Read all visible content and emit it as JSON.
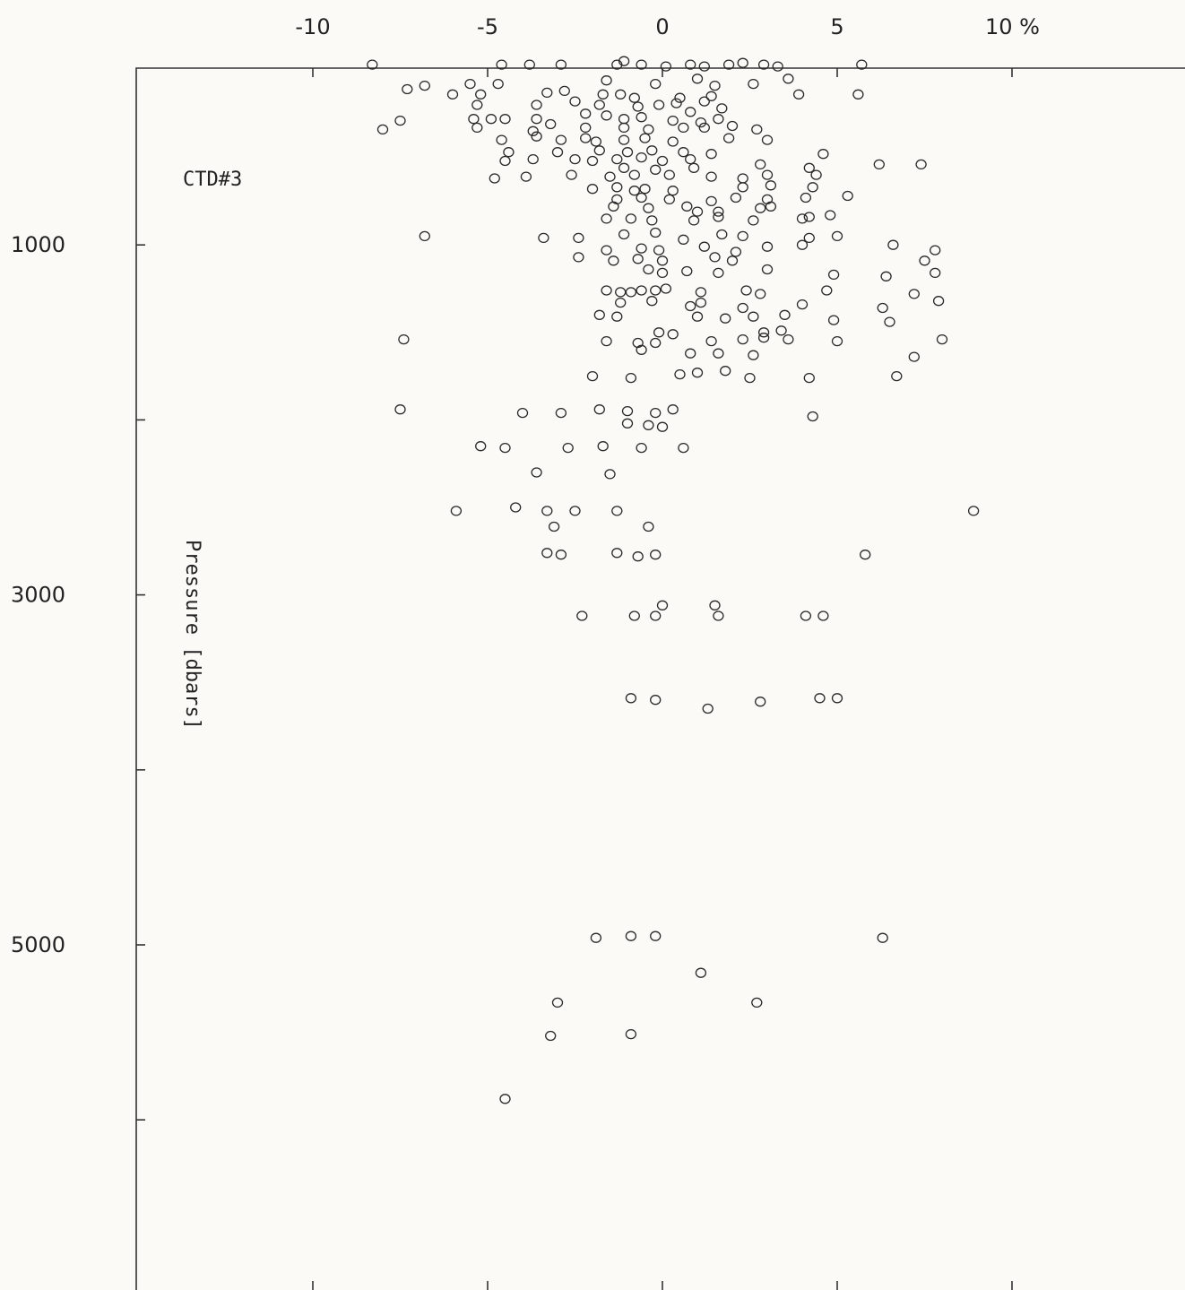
{
  "chart_data": {
    "type": "scatter",
    "title": "",
    "annotation": "CTD#3",
    "xlabel": "",
    "x_unit": "%",
    "ylabel": "Pressure [dbars]",
    "xlim": [
      -15,
      15
    ],
    "ylim": [
      6000,
      -200
    ],
    "y_inverted": true,
    "x_ticks": [
      -10,
      -5,
      0,
      5,
      10
    ],
    "x_tick_labels": [
      "-10",
      "-5",
      "0",
      "5",
      "10 %"
    ],
    "y_ticks": [
      1000,
      2000,
      3000,
      4000,
      5000,
      6000
    ],
    "y_tick_labels": [
      "1000",
      "",
      "3000",
      "",
      "5000",
      ""
    ],
    "grid": false,
    "legend": "none",
    "series": [
      {
        "marker": "open-circle",
        "points": [
          [
            -8.3,
            -30
          ],
          [
            -4.6,
            -30
          ],
          [
            -3.8,
            -30
          ],
          [
            -2.9,
            -30
          ],
          [
            -1.3,
            -30
          ],
          [
            -1.1,
            -50
          ],
          [
            -0.6,
            -30
          ],
          [
            0.1,
            -20
          ],
          [
            0.8,
            -30
          ],
          [
            1.2,
            -20
          ],
          [
            1.9,
            -30
          ],
          [
            2.3,
            -40
          ],
          [
            2.9,
            -30
          ],
          [
            3.3,
            -20
          ],
          [
            5.7,
            -30
          ],
          [
            -5.5,
            80
          ],
          [
            -4.7,
            80
          ],
          [
            -1.6,
            60
          ],
          [
            -0.2,
            80
          ],
          [
            1.0,
            50
          ],
          [
            1.5,
            90
          ],
          [
            2.6,
            80
          ],
          [
            3.6,
            50
          ],
          [
            -6.0,
            140
          ],
          [
            -5.2,
            140
          ],
          [
            -3.3,
            130
          ],
          [
            -2.8,
            120
          ],
          [
            -1.7,
            140
          ],
          [
            -1.2,
            140
          ],
          [
            0.5,
            160
          ],
          [
            1.4,
            150
          ],
          [
            3.9,
            140
          ],
          [
            5.6,
            140
          ],
          [
            -5.3,
            200
          ],
          [
            -3.6,
            200
          ],
          [
            -2.5,
            180
          ],
          [
            -1.8,
            200
          ],
          [
            -0.7,
            210
          ],
          [
            -0.1,
            200
          ],
          [
            0.4,
            190
          ],
          [
            1.2,
            180
          ],
          [
            -5.4,
            280
          ],
          [
            -4.9,
            280
          ],
          [
            -4.5,
            280
          ],
          [
            -3.6,
            280
          ],
          [
            -1.6,
            260
          ],
          [
            -1.1,
            280
          ],
          [
            -0.6,
            270
          ],
          [
            0.3,
            290
          ],
          [
            1.1,
            300
          ],
          [
            1.6,
            280
          ],
          [
            -7.5,
            290
          ],
          [
            -8.0,
            340
          ],
          [
            -5.3,
            330
          ],
          [
            -3.7,
            350
          ],
          [
            -2.2,
            330
          ],
          [
            -1.1,
            330
          ],
          [
            -0.4,
            340
          ],
          [
            0.6,
            330
          ],
          [
            1.2,
            330
          ],
          [
            2.0,
            320
          ],
          [
            -4.6,
            400
          ],
          [
            -3.6,
            380
          ],
          [
            -2.9,
            400
          ],
          [
            -2.2,
            390
          ],
          [
            -1.9,
            410
          ],
          [
            -1.1,
            400
          ],
          [
            -0.5,
            390
          ],
          [
            0.3,
            410
          ],
          [
            1.9,
            390
          ],
          [
            3.0,
            400
          ],
          [
            -4.4,
            470
          ],
          [
            -3.0,
            470
          ],
          [
            -1.8,
            460
          ],
          [
            -1.0,
            470
          ],
          [
            -0.3,
            460
          ],
          [
            0.6,
            470
          ],
          [
            1.4,
            480
          ],
          [
            4.6,
            480
          ],
          [
            -4.5,
            520
          ],
          [
            -3.7,
            510
          ],
          [
            -2.5,
            510
          ],
          [
            -2.0,
            520
          ],
          [
            -1.3,
            510
          ],
          [
            -0.6,
            500
          ],
          [
            0.0,
            520
          ],
          [
            0.8,
            510
          ],
          [
            -1.1,
            560
          ],
          [
            -0.2,
            570
          ],
          [
            0.9,
            560
          ],
          [
            2.8,
            540
          ],
          [
            4.2,
            560
          ],
          [
            6.2,
            540
          ],
          [
            7.4,
            540
          ],
          [
            -4.8,
            620
          ],
          [
            -3.9,
            610
          ],
          [
            -2.6,
            600
          ],
          [
            -1.5,
            610
          ],
          [
            -0.8,
            600
          ],
          [
            0.2,
            600
          ],
          [
            1.4,
            610
          ],
          [
            2.3,
            620
          ],
          [
            3.0,
            600
          ],
          [
            4.4,
            600
          ],
          [
            -7.3,
            110
          ],
          [
            -6.8,
            90
          ],
          [
            -3.2,
            310
          ],
          [
            -0.8,
            160
          ],
          [
            2.7,
            340
          ],
          [
            1.7,
            220
          ],
          [
            -2.2,
            250
          ],
          [
            0.8,
            240
          ],
          [
            -2.0,
            680
          ],
          [
            -1.3,
            670
          ],
          [
            -0.8,
            690
          ],
          [
            -0.5,
            680
          ],
          [
            0.3,
            690
          ],
          [
            2.3,
            670
          ],
          [
            3.1,
            660
          ],
          [
            4.3,
            670
          ],
          [
            -1.3,
            740
          ],
          [
            -0.6,
            730
          ],
          [
            0.2,
            740
          ],
          [
            1.4,
            750
          ],
          [
            2.1,
            730
          ],
          [
            3.0,
            740
          ],
          [
            4.1,
            730
          ],
          [
            5.3,
            720
          ],
          [
            -1.4,
            780
          ],
          [
            -0.4,
            790
          ],
          [
            0.7,
            780
          ],
          [
            1.0,
            810
          ],
          [
            1.6,
            810
          ],
          [
            2.8,
            790
          ],
          [
            3.1,
            780
          ],
          [
            4.2,
            840
          ],
          [
            -1.6,
            850
          ],
          [
            -0.9,
            850
          ],
          [
            -0.3,
            860
          ],
          [
            0.9,
            860
          ],
          [
            1.6,
            840
          ],
          [
            2.6,
            860
          ],
          [
            4.0,
            850
          ],
          [
            4.8,
            830
          ],
          [
            -6.8,
            950
          ],
          [
            -3.4,
            960
          ],
          [
            -2.4,
            960
          ],
          [
            -1.1,
            940
          ],
          [
            -0.2,
            930
          ],
          [
            0.6,
            970
          ],
          [
            1.7,
            940
          ],
          [
            2.3,
            950
          ],
          [
            4.2,
            960
          ],
          [
            5.0,
            950
          ],
          [
            -1.6,
            1030
          ],
          [
            -0.6,
            1020
          ],
          [
            -0.1,
            1030
          ],
          [
            1.2,
            1010
          ],
          [
            2.1,
            1040
          ],
          [
            3.0,
            1010
          ],
          [
            4.0,
            1000
          ],
          [
            6.6,
            1000
          ],
          [
            7.8,
            1030
          ],
          [
            -2.4,
            1070
          ],
          [
            -1.4,
            1090
          ],
          [
            -0.7,
            1080
          ],
          [
            0.0,
            1090
          ],
          [
            1.5,
            1070
          ],
          [
            2.0,
            1090
          ],
          [
            7.5,
            1090
          ],
          [
            -0.4,
            1140
          ],
          [
            0.0,
            1160
          ],
          [
            0.7,
            1150
          ],
          [
            1.6,
            1160
          ],
          [
            3.0,
            1140
          ],
          [
            4.9,
            1170
          ],
          [
            6.4,
            1180
          ],
          [
            7.8,
            1160
          ],
          [
            -1.6,
            1260
          ],
          [
            -1.2,
            1270
          ],
          [
            -0.9,
            1270
          ],
          [
            -0.6,
            1260
          ],
          [
            -0.2,
            1260
          ],
          [
            0.1,
            1250
          ],
          [
            1.1,
            1270
          ],
          [
            2.4,
            1260
          ],
          [
            2.8,
            1280
          ],
          [
            4.7,
            1260
          ],
          [
            7.2,
            1280
          ],
          [
            -1.2,
            1330
          ],
          [
            -0.3,
            1320
          ],
          [
            0.8,
            1350
          ],
          [
            1.1,
            1330
          ],
          [
            2.3,
            1360
          ],
          [
            4.0,
            1340
          ],
          [
            6.3,
            1360
          ],
          [
            7.9,
            1320
          ],
          [
            -1.8,
            1400
          ],
          [
            -1.3,
            1410
          ],
          [
            1.0,
            1410
          ],
          [
            1.8,
            1420
          ],
          [
            2.6,
            1410
          ],
          [
            3.5,
            1400
          ],
          [
            4.9,
            1430
          ],
          [
            6.5,
            1440
          ],
          [
            -0.1,
            1500
          ],
          [
            0.3,
            1510
          ],
          [
            2.9,
            1500
          ],
          [
            3.4,
            1490
          ],
          [
            -7.4,
            1540
          ],
          [
            -1.6,
            1550
          ],
          [
            -0.7,
            1560
          ],
          [
            -0.2,
            1560
          ],
          [
            1.4,
            1550
          ],
          [
            2.3,
            1540
          ],
          [
            2.9,
            1530
          ],
          [
            3.6,
            1540
          ],
          [
            5.0,
            1550
          ],
          [
            8.0,
            1540
          ],
          [
            -0.6,
            1600
          ],
          [
            0.8,
            1620
          ],
          [
            1.6,
            1620
          ],
          [
            2.6,
            1630
          ],
          [
            7.2,
            1640
          ],
          [
            -2.0,
            1750
          ],
          [
            -0.9,
            1760
          ],
          [
            0.5,
            1740
          ],
          [
            1.0,
            1730
          ],
          [
            1.8,
            1720
          ],
          [
            2.5,
            1760
          ],
          [
            4.2,
            1760
          ],
          [
            6.7,
            1750
          ],
          [
            -7.5,
            1940
          ],
          [
            -4.0,
            1960
          ],
          [
            -2.9,
            1960
          ],
          [
            -1.8,
            1940
          ],
          [
            -1.0,
            1950
          ],
          [
            -0.2,
            1960
          ],
          [
            0.3,
            1940
          ],
          [
            4.3,
            1980
          ],
          [
            -1.0,
            2020
          ],
          [
            -0.4,
            2030
          ],
          [
            0.0,
            2040
          ],
          [
            -5.2,
            2150
          ],
          [
            -4.5,
            2160
          ],
          [
            -2.7,
            2160
          ],
          [
            -1.7,
            2150
          ],
          [
            -0.6,
            2160
          ],
          [
            0.6,
            2160
          ],
          [
            -3.6,
            2300
          ],
          [
            -1.5,
            2310
          ],
          [
            -4.2,
            2500
          ],
          [
            -3.3,
            2520
          ],
          [
            -2.5,
            2520
          ],
          [
            -1.3,
            2520
          ],
          [
            -5.9,
            2520
          ],
          [
            8.9,
            2520
          ],
          [
            -3.1,
            2610
          ],
          [
            -0.4,
            2610
          ],
          [
            -3.3,
            2760
          ],
          [
            -2.9,
            2770
          ],
          [
            -1.3,
            2760
          ],
          [
            -0.7,
            2780
          ],
          [
            -0.2,
            2770
          ],
          [
            5.8,
            2770
          ],
          [
            0.0,
            3060
          ],
          [
            1.5,
            3060
          ],
          [
            -2.3,
            3120
          ],
          [
            -0.8,
            3120
          ],
          [
            -0.2,
            3120
          ],
          [
            1.6,
            3120
          ],
          [
            4.1,
            3120
          ],
          [
            4.6,
            3120
          ],
          [
            -0.9,
            3590
          ],
          [
            -0.2,
            3600
          ],
          [
            1.3,
            3650
          ],
          [
            2.8,
            3610
          ],
          [
            4.5,
            3590
          ],
          [
            5.0,
            3590
          ],
          [
            -1.9,
            4960
          ],
          [
            -0.9,
            4950
          ],
          [
            -0.2,
            4950
          ],
          [
            6.3,
            4960
          ],
          [
            1.1,
            5160
          ],
          [
            -3.0,
            5330
          ],
          [
            2.7,
            5330
          ],
          [
            -3.2,
            5520
          ],
          [
            -0.9,
            5510
          ],
          [
            -4.5,
            5880
          ]
        ]
      }
    ]
  }
}
